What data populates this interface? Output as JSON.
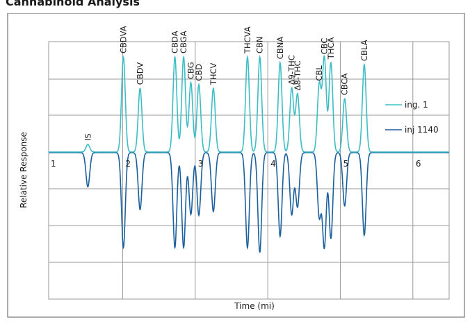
{
  "header": {
    "title": "Cannabinoid Analysis"
  },
  "chart_data": {
    "type": "line",
    "title": "",
    "xlabel": "Time (mi)",
    "ylabel": "Relative Response",
    "xlim": [
      0.98,
      6.5
    ],
    "x_ticks": [
      "1",
      "2",
      "3",
      "4",
      "5",
      "6"
    ],
    "grid": true,
    "legend_position": "right",
    "series": [
      {
        "name": "ing. 1",
        "color": "#3dbdc6",
        "direction": "up",
        "peaks": [
          {
            "label": "IS",
            "x": 1.52,
            "height": 0.08
          },
          {
            "label": "CBDVA",
            "x": 2.01,
            "height": 1.0
          },
          {
            "label": "CBDV",
            "x": 2.24,
            "height": 0.67
          },
          {
            "label": "CBDA",
            "x": 2.72,
            "height": 1.0
          },
          {
            "label": "CBGA",
            "x": 2.84,
            "height": 1.0
          },
          {
            "label": "CBG",
            "x": 2.94,
            "height": 0.73
          },
          {
            "label": "CBD",
            "x": 3.05,
            "height": 0.71
          },
          {
            "label": "THCV",
            "x": 3.25,
            "height": 0.67
          },
          {
            "label": "THCVA",
            "x": 3.72,
            "height": 1.0
          },
          {
            "label": "CBN",
            "x": 3.89,
            "height": 1.0
          },
          {
            "label": "CBNA",
            "x": 4.17,
            "height": 0.94
          },
          {
            "label": "Δ9-THC",
            "x": 4.33,
            "height": 0.67
          },
          {
            "label": "Δ8-THC",
            "x": 4.41,
            "height": 0.61
          },
          {
            "label": "CBL",
            "x": 4.71,
            "height": 0.71
          },
          {
            "label": "CBC",
            "x": 4.78,
            "height": 0.99
          },
          {
            "label": "THCA",
            "x": 4.87,
            "height": 0.94
          },
          {
            "label": "CBCA",
            "x": 5.06,
            "height": 0.56
          },
          {
            "label": "CBLA",
            "x": 5.33,
            "height": 0.92
          }
        ]
      },
      {
        "name": "inj 1140",
        "color": "#1a5f9e",
        "direction": "down",
        "peaks": [
          {
            "x": 1.52,
            "height": 0.36
          },
          {
            "x": 2.01,
            "height": 1.0
          },
          {
            "x": 2.24,
            "height": 0.6
          },
          {
            "x": 2.72,
            "height": 1.0
          },
          {
            "x": 2.84,
            "height": 1.0
          },
          {
            "x": 2.94,
            "height": 0.65
          },
          {
            "x": 3.05,
            "height": 0.66
          },
          {
            "x": 3.25,
            "height": 0.62
          },
          {
            "x": 3.72,
            "height": 1.0
          },
          {
            "x": 3.89,
            "height": 1.05
          },
          {
            "x": 4.17,
            "height": 0.88
          },
          {
            "x": 4.33,
            "height": 0.65
          },
          {
            "x": 4.41,
            "height": 0.57
          },
          {
            "x": 4.71,
            "height": 0.67
          },
          {
            "x": 4.78,
            "height": 0.99
          },
          {
            "x": 4.87,
            "height": 0.9
          },
          {
            "x": 5.06,
            "height": 0.56
          },
          {
            "x": 5.33,
            "height": 0.87
          }
        ]
      }
    ]
  }
}
